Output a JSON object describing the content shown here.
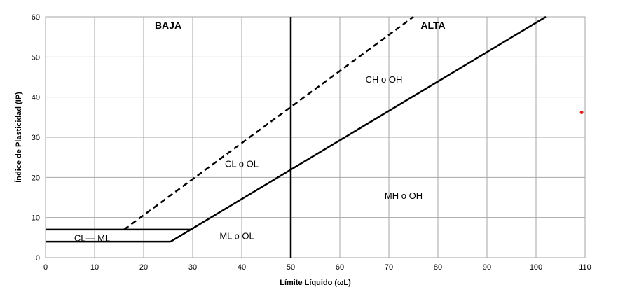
{
  "chart_data": {
    "type": "line",
    "title": "",
    "xlabel": "Límite Líquido (ωL)",
    "ylabel": "Índice de Plasticidad (IP)",
    "xlim": [
      0,
      110
    ],
    "ylim": [
      0,
      60
    ],
    "xticks": [
      0,
      10,
      20,
      30,
      40,
      50,
      60,
      70,
      80,
      90,
      100,
      110
    ],
    "yticks": [
      0,
      10,
      20,
      30,
      40,
      50,
      60
    ],
    "grid": true,
    "colors": {
      "line": "#000000",
      "grid": "#a6a6a6",
      "point": "#e02020"
    },
    "series": [
      {
        "style": "solid",
        "points": [
          [
            25.5,
            4
          ],
          [
            102,
            60
          ]
        ]
      },
      {
        "style": "dashed",
        "points": [
          [
            16,
            7
          ],
          [
            75,
            60
          ]
        ]
      },
      {
        "style": "solid",
        "points": [
          [
            50,
            0
          ],
          [
            50,
            60
          ]
        ]
      },
      {
        "style": "solid",
        "points": [
          [
            0,
            7
          ],
          [
            29.6,
            7
          ]
        ]
      },
      {
        "style": "solid",
        "points": [
          [
            0,
            4
          ],
          [
            25.5,
            4
          ]
        ]
      }
    ],
    "extra_points": [
      {
        "x": 109.3,
        "y": 36.2
      }
    ],
    "zone_labels": [
      {
        "text": "BAJA",
        "x": 25,
        "y": 57
      },
      {
        "text": "ALTA",
        "x": 79,
        "y": 57
      }
    ],
    "region_labels": [
      {
        "text": "CH  o OH",
        "x": 69,
        "y": 44.5
      },
      {
        "text": "CL  o  OL",
        "x": 40,
        "y": 23.5
      },
      {
        "text": "MH  o OH",
        "x": 73,
        "y": 15.5
      },
      {
        "text": "ML  o  OL",
        "x": 39,
        "y": 5.5
      },
      {
        "text": "CL— ML",
        "x": 9.5,
        "y": 5
      }
    ]
  }
}
